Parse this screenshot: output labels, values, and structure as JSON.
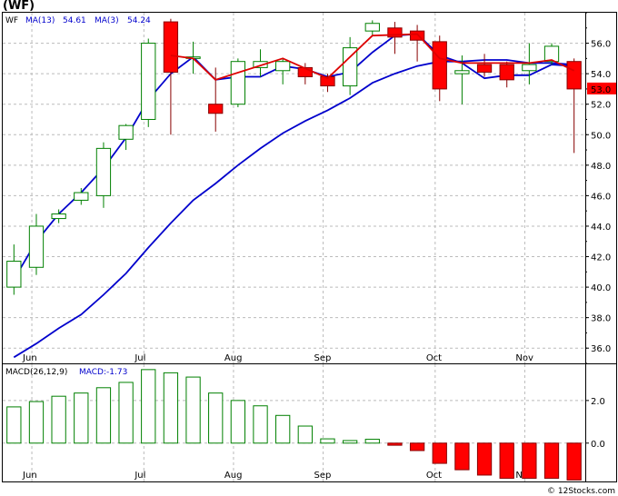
{
  "header": {
    "ticker_title": "(WF)"
  },
  "footer": {
    "credit": "© 12Stocks.com"
  },
  "chart_data": [
    {
      "type": "candlestick",
      "legend": {
        "symbol": "WF",
        "ma13_label": "MA(13)",
        "ma13_value": "54.61",
        "ma3_label": "MA(3)",
        "ma3_value": "54.24"
      },
      "last_price_label": "53.0",
      "ylim": [
        35.0,
        58.0
      ],
      "yticks": [
        36.0,
        38.0,
        40.0,
        42.0,
        44.0,
        46.0,
        48.0,
        50.0,
        52.0,
        54.0,
        56.0
      ],
      "ytick_labels": [
        "36.0",
        "38.0",
        "40.0",
        "42.0",
        "44.0",
        "46.0",
        "48.0",
        "50.0",
        "52.0",
        "54.0",
        "56.0"
      ],
      "xlim": [
        0,
        26
      ],
      "month_ticks": [
        {
          "x": 1.3,
          "label": "Jun"
        },
        {
          "x": 6.3,
          "label": "Jul"
        },
        {
          "x": 10.3,
          "label": "Aug"
        },
        {
          "x": 14.3,
          "label": "Sep"
        },
        {
          "x": 19.3,
          "label": "Oct"
        },
        {
          "x": 23.3,
          "label": "Nov"
        }
      ],
      "candles": [
        {
          "x": 0.5,
          "open": 40.0,
          "high": 42.8,
          "low": 39.5,
          "close": 41.7
        },
        {
          "x": 1.5,
          "open": 41.3,
          "high": 44.8,
          "low": 40.8,
          "close": 44.0
        },
        {
          "x": 2.5,
          "open": 44.5,
          "high": 45.1,
          "low": 44.2,
          "close": 44.8
        },
        {
          "x": 3.5,
          "open": 45.7,
          "high": 46.5,
          "low": 45.4,
          "close": 46.2
        },
        {
          "x": 4.5,
          "open": 46.0,
          "high": 49.5,
          "low": 45.2,
          "close": 49.1
        },
        {
          "x": 5.5,
          "open": 49.7,
          "high": 50.7,
          "low": 49.0,
          "close": 50.6
        },
        {
          "x": 6.5,
          "open": 51.0,
          "high": 56.3,
          "low": 50.5,
          "close": 56.0
        },
        {
          "x": 7.5,
          "open": 57.4,
          "high": 57.6,
          "low": 50.0,
          "close": 54.1
        },
        {
          "x": 8.5,
          "open": 55.0,
          "high": 56.1,
          "low": 54.0,
          "close": 55.1
        },
        {
          "x": 9.5,
          "open": 52.0,
          "high": 54.4,
          "low": 50.2,
          "close": 51.4
        },
        {
          "x": 10.5,
          "open": 52.0,
          "high": 55.0,
          "low": 51.8,
          "close": 54.8
        },
        {
          "x": 11.5,
          "open": 54.4,
          "high": 55.6,
          "low": 53.8,
          "close": 54.8
        },
        {
          "x": 12.5,
          "open": 54.2,
          "high": 55.0,
          "low": 53.3,
          "close": 54.8
        },
        {
          "x": 13.5,
          "open": 54.4,
          "high": 54.7,
          "low": 53.3,
          "close": 53.8
        },
        {
          "x": 14.5,
          "open": 53.8,
          "high": 54.0,
          "low": 52.8,
          "close": 53.2
        },
        {
          "x": 15.5,
          "open": 53.2,
          "high": 56.4,
          "low": 52.6,
          "close": 55.7
        },
        {
          "x": 16.5,
          "open": 56.8,
          "high": 57.5,
          "low": 56.5,
          "close": 57.3
        },
        {
          "x": 17.5,
          "open": 57.0,
          "high": 57.4,
          "low": 55.3,
          "close": 56.4
        },
        {
          "x": 18.5,
          "open": 56.8,
          "high": 57.2,
          "low": 54.8,
          "close": 56.2
        },
        {
          "x": 19.5,
          "open": 56.1,
          "high": 56.5,
          "low": 52.2,
          "close": 53.0
        },
        {
          "x": 20.5,
          "open": 54.0,
          "high": 55.2,
          "low": 52.0,
          "close": 54.2
        },
        {
          "x": 21.5,
          "open": 54.6,
          "high": 55.3,
          "low": 53.8,
          "close": 54.1
        },
        {
          "x": 22.5,
          "open": 54.6,
          "high": 54.8,
          "low": 53.1,
          "close": 53.6
        },
        {
          "x": 23.5,
          "open": 54.2,
          "high": 56.0,
          "low": 53.3,
          "close": 54.6
        },
        {
          "x": 24.5,
          "open": 54.8,
          "high": 56.0,
          "low": 54.6,
          "close": 55.8
        },
        {
          "x": 25.5,
          "open": 54.8,
          "high": 55.0,
          "low": 48.8,
          "close": 53.0
        }
      ],
      "ma13_series": [
        {
          "x": 0.5,
          "y": 35.4
        },
        {
          "x": 1.5,
          "y": 36.3
        },
        {
          "x": 2.5,
          "y": 37.3
        },
        {
          "x": 3.5,
          "y": 38.2
        },
        {
          "x": 4.5,
          "y": 39.5
        },
        {
          "x": 5.5,
          "y": 40.9
        },
        {
          "x": 6.5,
          "y": 42.6
        },
        {
          "x": 7.5,
          "y": 44.2
        },
        {
          "x": 8.5,
          "y": 45.7
        },
        {
          "x": 9.5,
          "y": 46.8
        },
        {
          "x": 10.5,
          "y": 48.0
        },
        {
          "x": 11.5,
          "y": 49.1
        },
        {
          "x": 12.5,
          "y": 50.1
        },
        {
          "x": 13.5,
          "y": 50.9
        },
        {
          "x": 14.5,
          "y": 51.6
        },
        {
          "x": 15.5,
          "y": 52.4
        },
        {
          "x": 16.5,
          "y": 53.4
        },
        {
          "x": 17.5,
          "y": 54.0
        },
        {
          "x": 18.5,
          "y": 54.5
        },
        {
          "x": 19.5,
          "y": 54.8
        },
        {
          "x": 20.5,
          "y": 54.8
        },
        {
          "x": 21.5,
          "y": 54.9
        },
        {
          "x": 22.5,
          "y": 54.9
        },
        {
          "x": 23.5,
          "y": 54.7
        },
        {
          "x": 24.5,
          "y": 54.7
        },
        {
          "x": 25.5,
          "y": 54.6
        }
      ],
      "ma13_fast_series": [
        {
          "x": 0.5,
          "y": 40.5
        },
        {
          "x": 1.5,
          "y": 43.0
        },
        {
          "x": 2.5,
          "y": 44.8
        },
        {
          "x": 3.5,
          "y": 46.2
        },
        {
          "x": 4.5,
          "y": 47.8
        },
        {
          "x": 5.5,
          "y": 49.8
        },
        {
          "x": 6.5,
          "y": 52.3
        },
        {
          "x": 7.5,
          "y": 54.0
        },
        {
          "x": 8.5,
          "y": 55.1
        },
        {
          "x": 9.5,
          "y": 53.6
        },
        {
          "x": 10.5,
          "y": 53.8
        },
        {
          "x": 11.5,
          "y": 53.8
        },
        {
          "x": 12.5,
          "y": 54.5
        },
        {
          "x": 13.5,
          "y": 54.3
        },
        {
          "x": 14.5,
          "y": 53.8
        },
        {
          "x": 15.5,
          "y": 54.1
        },
        {
          "x": 16.5,
          "y": 55.4
        },
        {
          "x": 17.5,
          "y": 56.5
        },
        {
          "x": 18.5,
          "y": 56.6
        },
        {
          "x": 19.5,
          "y": 55.2
        },
        {
          "x": 20.5,
          "y": 54.7
        },
        {
          "x": 21.5,
          "y": 53.7
        },
        {
          "x": 22.5,
          "y": 53.9
        },
        {
          "x": 23.5,
          "y": 53.9
        },
        {
          "x": 24.5,
          "y": 54.6
        },
        {
          "x": 25.5,
          "y": 54.5
        }
      ],
      "ma3_series": [
        {
          "x": 7.5,
          "y": 55.2
        },
        {
          "x": 8.5,
          "y": 55.0
        },
        {
          "x": 9.5,
          "y": 53.6
        },
        {
          "x": 12.5,
          "y": 55.0
        },
        {
          "x": 14.5,
          "y": 53.7
        },
        {
          "x": 16.5,
          "y": 56.5
        },
        {
          "x": 18.5,
          "y": 56.6
        },
        {
          "x": 19.5,
          "y": 55.0
        },
        {
          "x": 20.5,
          "y": 54.7
        },
        {
          "x": 22.5,
          "y": 54.7
        },
        {
          "x": 23.5,
          "y": 54.7
        },
        {
          "x": 24.5,
          "y": 54.9
        },
        {
          "x": 25.5,
          "y": 54.2
        }
      ],
      "colors": {
        "up": "#008000",
        "down": "#ff0000",
        "ma13": "#0000cc",
        "ma3": "#dd0000",
        "grid": "#bbbbbb",
        "panel_border": "#000000",
        "price_label_bg": "#ff0000"
      }
    },
    {
      "type": "bar",
      "legend": {
        "label": "MACD(26,12,9)",
        "value_label": "MACD:-1.73"
      },
      "ylim": [
        -1.8,
        3.7
      ],
      "yticks": [
        0.0,
        2.0
      ],
      "ytick_labels": [
        "0.0",
        "2.0"
      ],
      "xlim": [
        0,
        26
      ],
      "month_ticks": [
        {
          "x": 1.3,
          "label": "Jun"
        },
        {
          "x": 6.3,
          "label": "Jul"
        },
        {
          "x": 10.3,
          "label": "Aug"
        },
        {
          "x": 14.3,
          "label": "Sep"
        },
        {
          "x": 19.3,
          "label": "Oct"
        },
        {
          "x": 23.3,
          "label": "Nov"
        }
      ],
      "bars": [
        {
          "x": 0.5,
          "value": 1.7
        },
        {
          "x": 1.5,
          "value": 1.95
        },
        {
          "x": 2.5,
          "value": 2.2
        },
        {
          "x": 3.5,
          "value": 2.35
        },
        {
          "x": 4.5,
          "value": 2.6
        },
        {
          "x": 5.5,
          "value": 2.85
        },
        {
          "x": 6.5,
          "value": 3.45
        },
        {
          "x": 7.5,
          "value": 3.3
        },
        {
          "x": 8.5,
          "value": 3.1
        },
        {
          "x": 9.5,
          "value": 2.35
        },
        {
          "x": 10.5,
          "value": 2.0
        },
        {
          "x": 11.5,
          "value": 1.75
        },
        {
          "x": 12.5,
          "value": 1.3
        },
        {
          "x": 13.5,
          "value": 0.8
        },
        {
          "x": 14.5,
          "value": 0.2
        },
        {
          "x": 15.5,
          "value": 0.12
        },
        {
          "x": 16.5,
          "value": 0.18
        },
        {
          "x": 17.5,
          "value": -0.1
        },
        {
          "x": 18.5,
          "value": -0.35
        },
        {
          "x": 19.5,
          "value": -0.95
        },
        {
          "x": 20.5,
          "value": -1.25
        },
        {
          "x": 21.5,
          "value": -1.5
        },
        {
          "x": 22.5,
          "value": -1.65
        },
        {
          "x": 23.5,
          "value": -1.65
        },
        {
          "x": 24.5,
          "value": -1.65
        },
        {
          "x": 25.5,
          "value": -1.73
        }
      ],
      "colors": {
        "positive": "#008000",
        "negative": "#ff0000",
        "grid": "#bbbbbb",
        "panel_border": "#000000"
      }
    }
  ]
}
